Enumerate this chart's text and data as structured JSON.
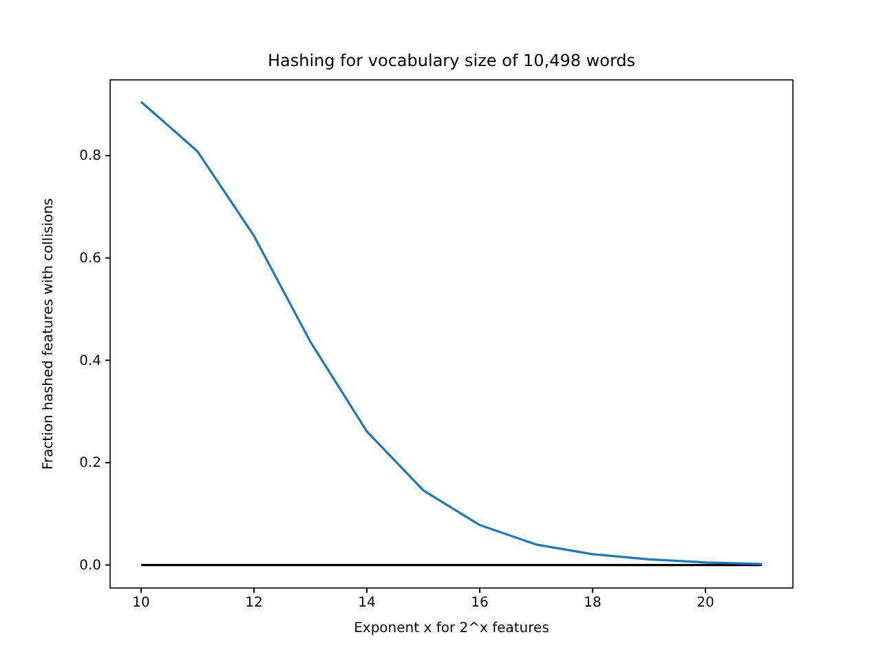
{
  "chart_data": {
    "type": "line",
    "title": "Hashing for vocabulary size of 10,498 words",
    "xlabel": "Exponent x for 2^x features",
    "ylabel": "Fraction hashed features with collisions",
    "x": [
      10,
      11,
      12,
      13,
      14,
      15,
      16,
      17,
      18,
      19,
      20,
      21
    ],
    "series": [
      {
        "color": "#1f77b4",
        "values": [
          0.905,
          0.808,
          0.643,
          0.436,
          0.261,
          0.146,
          0.078,
          0.04,
          0.021,
          0.011,
          0.005,
          0.002
        ]
      },
      {
        "color": "#000000",
        "values": [
          0,
          0,
          0,
          0,
          0,
          0,
          0,
          0,
          0,
          0,
          0,
          0
        ]
      }
    ],
    "xlim": [
      9.45,
      21.55
    ],
    "ylim": [
      -0.045,
      0.948
    ],
    "xticks": [
      10,
      12,
      14,
      16,
      18,
      20
    ],
    "yticks": [
      {
        "value": 0,
        "label": "0.0"
      },
      {
        "value": 0.2,
        "label": "0.2"
      },
      {
        "value": 0.4,
        "label": "0.4"
      },
      {
        "value": 0.6,
        "label": "0.6"
      },
      {
        "value": 0.8,
        "label": "0.8"
      }
    ],
    "grid": false,
    "marker": "none",
    "line_style": "solid"
  }
}
